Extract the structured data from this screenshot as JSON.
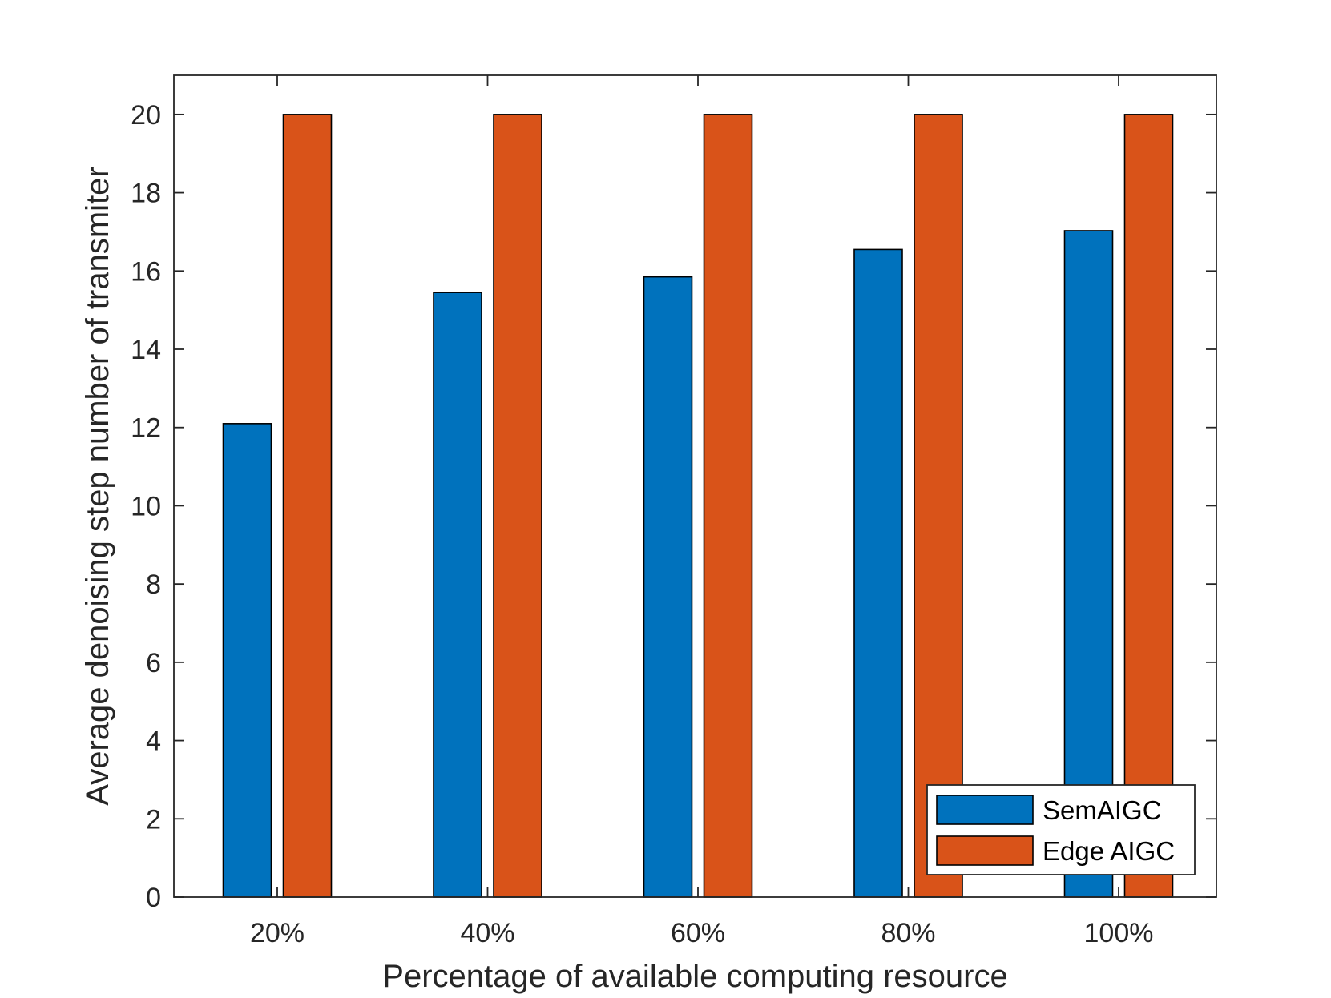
{
  "chart_data": {
    "type": "bar",
    "title": "",
    "xlabel": "Percentage of available computing resource",
    "ylabel": "Average denoising step number of transmiter",
    "categories": [
      "20%",
      "40%",
      "60%",
      "80%",
      "100%"
    ],
    "series": [
      {
        "name": "SemAIGC",
        "values": [
          12.1,
          15.45,
          15.85,
          16.55,
          17.03
        ],
        "color": "#0072BD"
      },
      {
        "name": "Edge AIGC",
        "values": [
          20,
          20,
          20,
          20,
          20
        ],
        "color": "#D95319"
      }
    ],
    "ylim": [
      0,
      21
    ],
    "yticks": [
      0,
      2,
      4,
      6,
      8,
      10,
      12,
      14,
      16,
      18,
      20
    ],
    "legend_position": "bottom-right",
    "grid": false
  }
}
